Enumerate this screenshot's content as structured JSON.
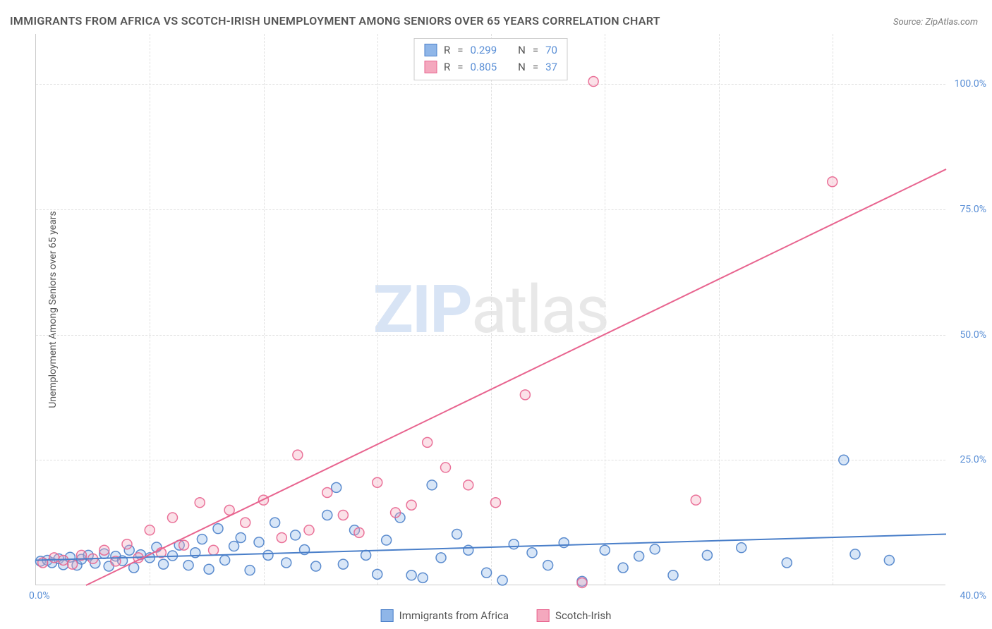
{
  "title": "IMMIGRANTS FROM AFRICA VS SCOTCH-IRISH UNEMPLOYMENT AMONG SENIORS OVER 65 YEARS CORRELATION CHART",
  "source_label": "Source:",
  "source_value": "ZipAtlas.com",
  "watermark_zip": "ZIP",
  "watermark_atlas": "atlas",
  "ylabel": "Unemployment Among Seniors over 65 years",
  "chart": {
    "type": "scatter",
    "xlim": [
      0,
      40
    ],
    "ylim": [
      0,
      110
    ],
    "xticks_visible": [
      0.0,
      40.0
    ],
    "xtick_labels": [
      "0.0%",
      "40.0%"
    ],
    "yticks": [
      25.0,
      50.0,
      75.0,
      100.0
    ],
    "ytick_labels": [
      "25.0%",
      "50.0%",
      "75.0%",
      "100.0%"
    ],
    "minor_vgrids": [
      5,
      10,
      15,
      20,
      25,
      30,
      35
    ],
    "background_color": "#ffffff",
    "grid_color": "#e0e0e0",
    "series": [
      {
        "name": "Immigrants from Africa",
        "color_fill": "#8fb6e8",
        "color_stroke": "#4a7fc9",
        "R": 0.299,
        "N": 70,
        "regression": {
          "x1": 0,
          "y1": 5.0,
          "x2": 40,
          "y2": 10.2
        },
        "points": [
          [
            0.2,
            4.8
          ],
          [
            0.5,
            5.0
          ],
          [
            0.7,
            4.5
          ],
          [
            1.0,
            5.3
          ],
          [
            1.2,
            4.1
          ],
          [
            1.5,
            5.6
          ],
          [
            1.8,
            4.0
          ],
          [
            2.0,
            5.2
          ],
          [
            2.3,
            6.0
          ],
          [
            2.6,
            4.4
          ],
          [
            3.0,
            6.3
          ],
          [
            3.2,
            3.8
          ],
          [
            3.5,
            5.8
          ],
          [
            3.8,
            4.9
          ],
          [
            4.1,
            7.0
          ],
          [
            4.3,
            3.5
          ],
          [
            4.6,
            6.1
          ],
          [
            5.0,
            5.5
          ],
          [
            5.3,
            7.6
          ],
          [
            5.6,
            4.2
          ],
          [
            6.0,
            5.9
          ],
          [
            6.3,
            8.0
          ],
          [
            6.7,
            4.0
          ],
          [
            7.0,
            6.5
          ],
          [
            7.3,
            9.2
          ],
          [
            7.6,
            3.2
          ],
          [
            8.0,
            11.3
          ],
          [
            8.3,
            5.0
          ],
          [
            8.7,
            7.8
          ],
          [
            9.0,
            9.5
          ],
          [
            9.4,
            3.0
          ],
          [
            9.8,
            8.6
          ],
          [
            10.2,
            6.0
          ],
          [
            10.5,
            12.5
          ],
          [
            11.0,
            4.5
          ],
          [
            11.4,
            10.0
          ],
          [
            11.8,
            7.1
          ],
          [
            12.3,
            3.8
          ],
          [
            12.8,
            14.0
          ],
          [
            13.2,
            19.5
          ],
          [
            13.5,
            4.2
          ],
          [
            14.0,
            11.0
          ],
          [
            14.5,
            6.0
          ],
          [
            15.0,
            2.2
          ],
          [
            15.4,
            9.0
          ],
          [
            16.0,
            13.5
          ],
          [
            16.5,
            2.0
          ],
          [
            17.0,
            1.5
          ],
          [
            17.4,
            20.0
          ],
          [
            17.8,
            5.5
          ],
          [
            18.5,
            10.2
          ],
          [
            19.0,
            7.0
          ],
          [
            19.8,
            2.5
          ],
          [
            20.5,
            1.0
          ],
          [
            21.0,
            8.2
          ],
          [
            21.8,
            6.5
          ],
          [
            22.5,
            4.0
          ],
          [
            23.2,
            8.5
          ],
          [
            24.0,
            0.8
          ],
          [
            25.0,
            7.0
          ],
          [
            25.8,
            3.5
          ],
          [
            26.5,
            5.8
          ],
          [
            27.2,
            7.2
          ],
          [
            28.0,
            2.0
          ],
          [
            29.5,
            6.0
          ],
          [
            31.0,
            7.5
          ],
          [
            33.0,
            4.5
          ],
          [
            35.5,
            25.0
          ],
          [
            36.0,
            6.2
          ],
          [
            37.5,
            5.0
          ]
        ]
      },
      {
        "name": "Scotch-Irish",
        "color_fill": "#f4a8be",
        "color_stroke": "#e8648f",
        "R": 0.805,
        "N": 37,
        "regression": {
          "x1": 2.2,
          "y1": 0,
          "x2": 40,
          "y2": 83.0
        },
        "points": [
          [
            0.3,
            4.5
          ],
          [
            0.8,
            5.5
          ],
          [
            1.2,
            5.0
          ],
          [
            1.6,
            4.2
          ],
          [
            2.0,
            6.0
          ],
          [
            2.5,
            5.3
          ],
          [
            3.0,
            7.0
          ],
          [
            3.5,
            4.8
          ],
          [
            4.0,
            8.2
          ],
          [
            4.5,
            5.5
          ],
          [
            5.0,
            11.0
          ],
          [
            5.5,
            6.5
          ],
          [
            6.0,
            13.5
          ],
          [
            6.5,
            8.0
          ],
          [
            7.2,
            16.5
          ],
          [
            7.8,
            7.0
          ],
          [
            8.5,
            15.0
          ],
          [
            9.2,
            12.5
          ],
          [
            10.0,
            17.0
          ],
          [
            10.8,
            9.5
          ],
          [
            11.5,
            26.0
          ],
          [
            12.0,
            11.0
          ],
          [
            12.8,
            18.5
          ],
          [
            13.5,
            14.0
          ],
          [
            14.2,
            10.5
          ],
          [
            15.0,
            20.5
          ],
          [
            15.8,
            14.5
          ],
          [
            16.5,
            16.0
          ],
          [
            17.2,
            28.5
          ],
          [
            18.0,
            23.5
          ],
          [
            19.0,
            20.0
          ],
          [
            20.2,
            16.5
          ],
          [
            21.5,
            38.0
          ],
          [
            24.0,
            0.5
          ],
          [
            24.5,
            100.5
          ],
          [
            29.0,
            17.0
          ],
          [
            35.0,
            80.5
          ]
        ]
      }
    ],
    "marker_radius": 7
  },
  "stats_box": {
    "R_label": "R",
    "N_label": "N",
    "equals": "="
  },
  "legend_bottom": [
    {
      "label": "Immigrants from Africa",
      "fill": "#8fb6e8",
      "stroke": "#4a7fc9"
    },
    {
      "label": "Scotch-Irish",
      "fill": "#f4a8be",
      "stroke": "#e8648f"
    }
  ]
}
